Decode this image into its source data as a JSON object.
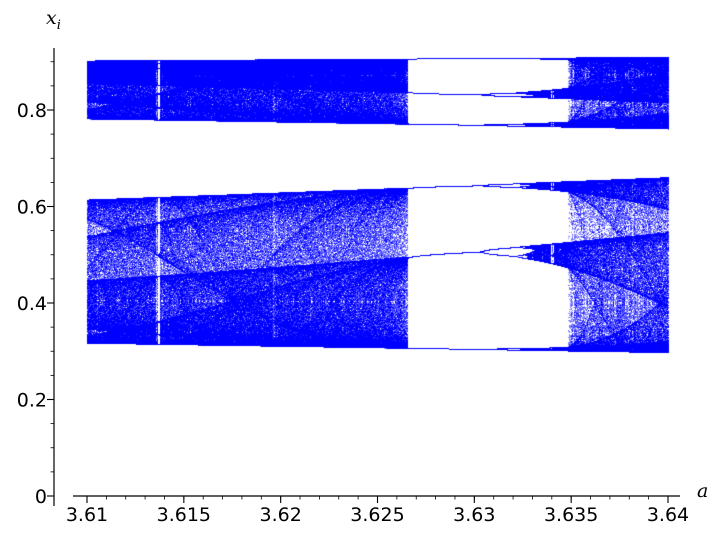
{
  "chart_data": {
    "type": "scatter",
    "title": "",
    "xlabel": "a",
    "ylabel": "x",
    "ylabel_subscript": "i",
    "xlim": [
      3.61,
      3.64
    ],
    "ylim": [
      0,
      0.9
    ],
    "x_ticks": [
      {
        "value": 3.61,
        "label": "3.61"
      },
      {
        "value": 3.615,
        "label": "3.615"
      },
      {
        "value": 3.62,
        "label": "3.62"
      },
      {
        "value": 3.625,
        "label": "3.625"
      },
      {
        "value": 3.63,
        "label": "3.63"
      },
      {
        "value": 3.635,
        "label": "3.635"
      },
      {
        "value": 3.64,
        "label": "3.64"
      }
    ],
    "y_ticks": [
      {
        "value": 0,
        "label": "0"
      },
      {
        "value": 0.2,
        "label": "0.2"
      },
      {
        "value": 0.4,
        "label": "0.4"
      },
      {
        "value": 0.6,
        "label": "0.6"
      },
      {
        "value": 0.8,
        "label": "0.8"
      }
    ],
    "x_minor_step": 0.001,
    "y_minor_step": 0.05,
    "grid": false,
    "series": [
      {
        "marker_color": "#0000ff",
        "function": "logistic map x_{i+1} = a·x_i·(1 − x_i)",
        "a_range": [
          3.61,
          3.64
        ],
        "x_range_observed": [
          0.3,
          0.91
        ]
      }
    ]
  }
}
